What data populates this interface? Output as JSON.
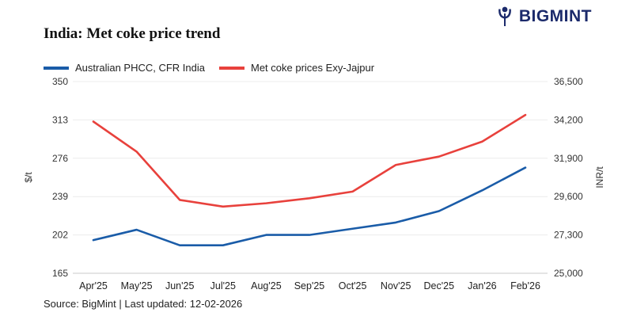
{
  "header": {
    "logo_text": "BIGMINT",
    "logo_color": "#1b2a6b"
  },
  "title": "India: Met coke price trend",
  "legend": [
    {
      "label": "Australian PHCC, CFR India",
      "color": "#1a5ca8"
    },
    {
      "label": "Met coke prices Exy-Jajpur",
      "color": "#e8413c"
    }
  ],
  "source_note": "Source: BigMint | Last updated: 12-02-2026",
  "chart_data": {
    "type": "line",
    "categories": [
      "Apr'25",
      "May'25",
      "Jun'25",
      "Jul'25",
      "Aug'25",
      "Sep'25",
      "Oct'25",
      "Nov'25",
      "Dec'25",
      "Jan'26",
      "Feb'26"
    ],
    "series": [
      {
        "name": "Australian PHCC, CFR India",
        "axis": "left",
        "color": "#1a5ca8",
        "values": [
          197,
          207,
          192,
          192,
          202,
          202,
          208,
          214,
          225,
          245,
          267
        ]
      },
      {
        "name": "Met coke prices Exy-Jajpur",
        "axis": "right",
        "color": "#e8413c",
        "values": [
          34100,
          32300,
          29400,
          29000,
          29200,
          29500,
          29900,
          31500,
          32000,
          32900,
          34500
        ]
      }
    ],
    "left_axis": {
      "label": "$/t",
      "min": 165,
      "max": 350,
      "ticks": [
        165,
        202,
        239,
        276,
        313,
        350
      ]
    },
    "right_axis": {
      "label": "INR/t",
      "min": 25000,
      "max": 36500,
      "ticks": [
        25000,
        27300,
        29600,
        31900,
        34200,
        36500
      ]
    },
    "grid": true,
    "legend_position": "top-left"
  }
}
